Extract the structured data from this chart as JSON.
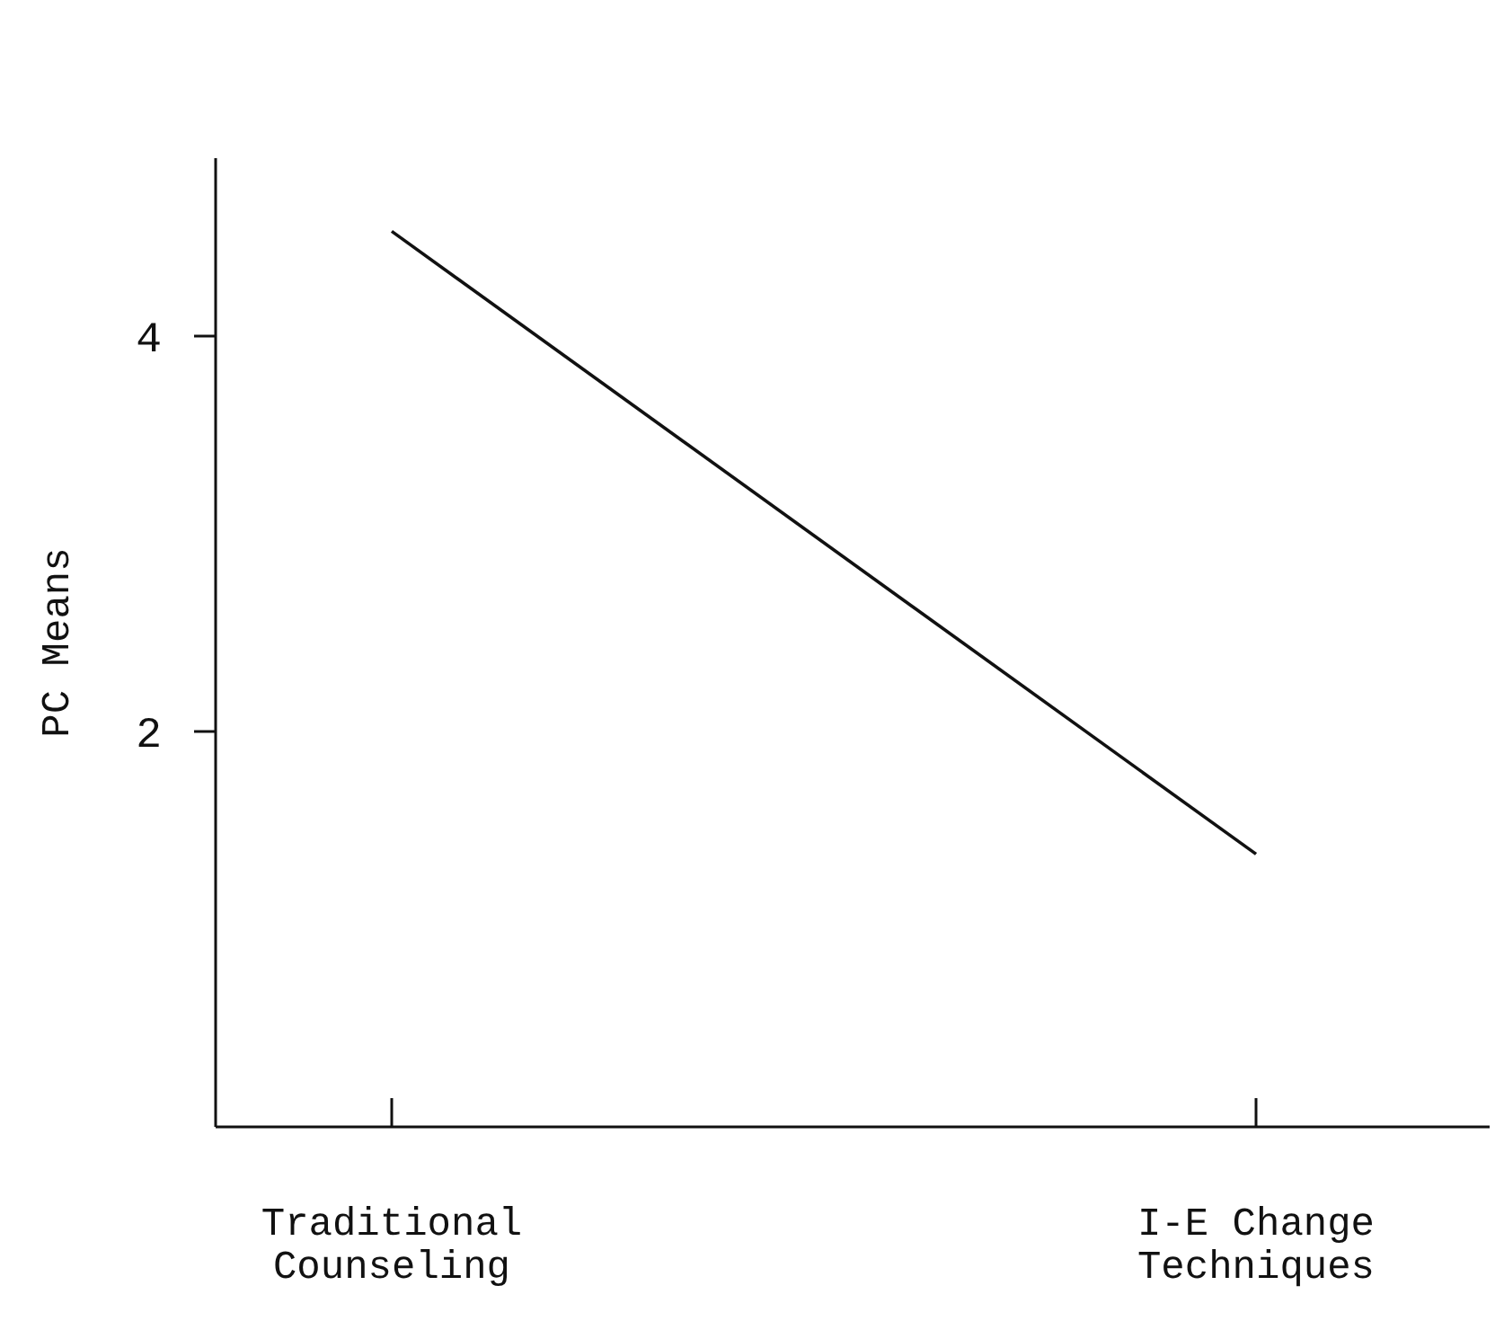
{
  "chart_data": {
    "type": "line",
    "ylabel": "PC Means",
    "categories": [
      "Traditional Counseling",
      "I-E Change Techniques"
    ],
    "series": [
      {
        "color": "#111111",
        "values": [
          4.53,
          1.38
        ]
      }
    ],
    "ylim": [
      0,
      4.9
    ],
    "yticks": [
      2,
      4
    ]
  }
}
